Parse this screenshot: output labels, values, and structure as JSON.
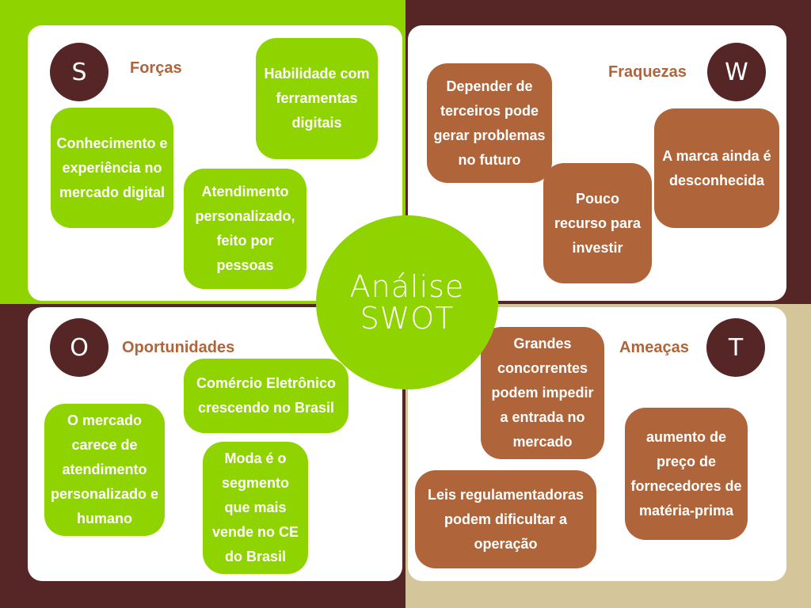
{
  "colors": {
    "green": "#8fd400",
    "dark_brown": "#562626",
    "copper": "#b0643a",
    "beige": "#d4c59a",
    "white": "#ffffff"
  },
  "center": {
    "line1": "Análise",
    "line2": "SWOT"
  },
  "strengths": {
    "letter": "S",
    "title": "Forças",
    "items": [
      "Habilidade com ferramentas digitais",
      "Conhecimento e experiência no mercado digital",
      "Atendimento personalizado, feito por pessoas"
    ]
  },
  "weaknesses": {
    "letter": "W",
    "title": "Fraquezas",
    "items": [
      "Depender de terceiros pode gerar problemas no futuro",
      "A marca ainda é desconhecida",
      "Pouco recurso para investir"
    ]
  },
  "opportunities": {
    "letter": "O",
    "title": "Oportunidades",
    "items": [
      "Comércio Eletrônico crescendo no Brasil",
      "O mercado carece de atendimento personalizado e humano",
      "Moda é o segmento que mais vende no CE do Brasil"
    ]
  },
  "threats": {
    "letter": "T",
    "title": "Ameaças",
    "items": [
      "Grandes concorrentes podem impedir a entrada no mercado",
      "aumento de preço de fornecedores de matéria-prima",
      "Leis regulamentadoras podem dificultar a operação"
    ]
  }
}
